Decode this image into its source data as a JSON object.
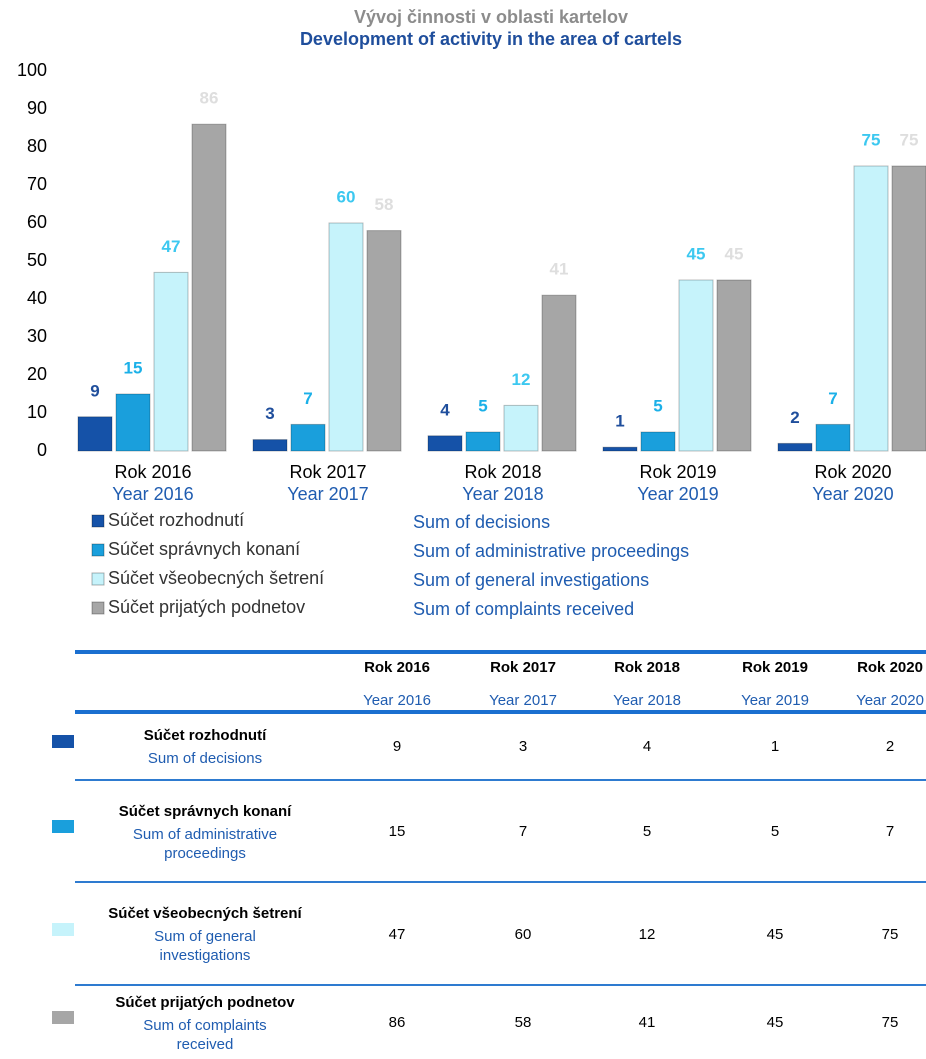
{
  "chart_data": {
    "type": "bar",
    "title": "Vývoj činnosti v oblasti kartelov",
    "subtitle": "Development of activity in the area of cartels",
    "categories": [
      "Rok 2016",
      "Rok 2017",
      "Rok 2018",
      "Rok 2019",
      "Rok 2020"
    ],
    "categories_en": [
      "Year 2016",
      "Year 2017",
      "Year 2018",
      "Year 2019",
      "Year 2020"
    ],
    "series": [
      {
        "name": "Súčet rozhodnutí",
        "name_en": "Sum of decisions",
        "color": "#1552a8",
        "label_color": "#1f4e9c",
        "values": [
          9,
          3,
          4,
          1,
          2
        ]
      },
      {
        "name": "Súčet správnych konaní",
        "name_en": "Sum of administrative proceedings",
        "color": "#1a9fdc",
        "label_color": "#1bb0e8",
        "values": [
          15,
          7,
          5,
          5,
          7
        ]
      },
      {
        "name": "Súčet všeobecných šetrení",
        "name_en": "Sum of general investigations",
        "color": "#c6f3fb",
        "label_color": "#3cc8f0",
        "values": [
          47,
          60,
          12,
          45,
          75
        ]
      },
      {
        "name": "Súčet prijatých podnetov",
        "name_en": "Sum of complaints received",
        "color": "#a6a6a6",
        "label_color": "#dedede",
        "values": [
          86,
          58,
          41,
          45,
          75
        ]
      }
    ],
    "ylim": [
      0,
      100
    ],
    "yticks": [
      0,
      10,
      20,
      30,
      40,
      50,
      60,
      70,
      80,
      90,
      100
    ],
    "grid": false
  }
}
